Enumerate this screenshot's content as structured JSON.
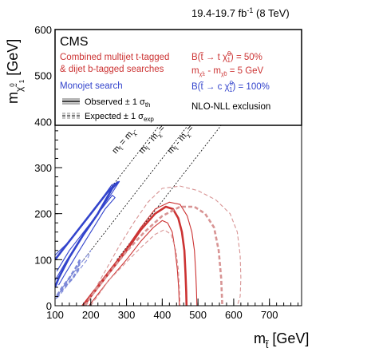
{
  "chart_data": {
    "type": "line",
    "lumi_label": "19.4-19.7 fb",
    "lumi_sup": "-1",
    "lumi_energy": "(8 TeV)",
    "xlabel": "m",
    "xlabel_sub": "t̃",
    "xlabel_unit": "[GeV]",
    "ylabel": "m",
    "ylabel_sub": "χ̃",
    "ylabel_sub2": "1",
    "ylabel_sup": "0",
    "ylabel_unit": "[GeV]",
    "xlim": [
      100,
      790
    ],
    "ylim": [
      0,
      600
    ],
    "xticks": [
      100,
      200,
      300,
      400,
      500,
      600,
      700
    ],
    "yticks": [
      0,
      100,
      200,
      300,
      400,
      500,
      600
    ],
    "grid": false,
    "legend_placement": "top",
    "colors": {
      "red": "#cc3333",
      "red_light": "#d89494",
      "blue": "#3344cc",
      "blue_light": "#7d89d8",
      "black": "#000000"
    },
    "legend": {
      "cms": "CMS",
      "red_line1": "Combined multijet t-tagged",
      "red_line2": "& dijet b-tagged searches",
      "blue_line": "Monojet search",
      "observed": "Observed ± 1 σ",
      "observed_sub": "th",
      "expected": "Expected ± 1 σ",
      "expected_sub": "exp",
      "br1": "B(t̃ → t χ̃",
      "br1_sup": "0",
      "br1_sub": "1",
      "br1_tail": ") = 50%",
      "mass_diff": "m",
      "mass_diff_sub1": "χ̃±",
      "mass_diff_mid": " - m",
      "mass_diff_sub2": "χ̃0",
      "mass_diff_tail": " = 5 GeV",
      "br2": "B(t̃ → c χ̃",
      "br2_sup": "0",
      "br2_sub": "1",
      "br2_tail": ") = 100%",
      "nlo": "NLO-NLL exclusion"
    },
    "diagonals": [
      {
        "name": "m_t̃ = m_χ̃",
        "offset": 0,
        "label": "m",
        "label_sub1": "t̃",
        "label_mid": " = m",
        "label_sub2": "χ̃",
        "label_tail": ""
      },
      {
        "name": "m_t̃ - m_χ̃ = m_W",
        "offset": 80,
        "label": "m",
        "label_sub1": "t̃",
        "label_mid": " - m",
        "label_sub2": "χ̃",
        "label_tail": " = m",
        "label_sub3": "W"
      },
      {
        "name": "m_t̃ - m_χ̃ = m_t",
        "offset": 173,
        "label": "m",
        "label_sub1": "t̃",
        "label_mid": " - m",
        "label_sub2": "χ̃",
        "label_tail": " = m",
        "label_sub3": "t"
      }
    ],
    "series": [
      {
        "group": "red",
        "role": "observed",
        "style": "solid-thick",
        "x": [
          180,
          200,
          250,
          300,
          340,
          380,
          410,
          430,
          445,
          455,
          462,
          465,
          467,
          468
        ],
        "y": [
          0,
          20,
          70,
          120,
          165,
          200,
          215,
          210,
          190,
          160,
          120,
          70,
          30,
          0
        ]
      },
      {
        "group": "red",
        "role": "observed_minus",
        "style": "solid-thin",
        "x": [
          195,
          250,
          300,
          340,
          375,
          400,
          415,
          428,
          436,
          442,
          446,
          448
        ],
        "y": [
          0,
          55,
          100,
          140,
          170,
          185,
          180,
          160,
          120,
          80,
          40,
          0
        ]
      },
      {
        "group": "red",
        "role": "observed_plus",
        "style": "solid-thin",
        "x": [
          175,
          200,
          250,
          300,
          340,
          380,
          420,
          450,
          470,
          483,
          490,
          494,
          496,
          497
        ],
        "y": [
          0,
          25,
          75,
          125,
          170,
          210,
          225,
          220,
          195,
          160,
          120,
          70,
          30,
          0
        ]
      },
      {
        "group": "red",
        "role": "expected",
        "style": "dashed-thick",
        "x": [
          185,
          200,
          250,
          300,
          350,
          400,
          450,
          490,
          520,
          545,
          558,
          565,
          568
        ],
        "y": [
          0,
          20,
          70,
          118,
          160,
          195,
          215,
          215,
          200,
          170,
          120,
          60,
          0
        ]
      },
      {
        "group": "red",
        "role": "expected_minus",
        "style": "dashed-thin",
        "x": [
          200,
          250,
          300,
          345,
          380,
          405,
          425,
          438,
          445,
          448,
          450
        ],
        "y": [
          0,
          55,
          95,
          130,
          155,
          165,
          155,
          120,
          80,
          40,
          0
        ]
      },
      {
        "group": "red",
        "role": "expected_plus",
        "style": "dashed-thin",
        "x": [
          180,
          200,
          240,
          280,
          320,
          360,
          400,
          450,
          500,
          550,
          590,
          610,
          618,
          620,
          618,
          610
        ],
        "y": [
          0,
          20,
          75,
          130,
          180,
          225,
          255,
          260,
          250,
          230,
          200,
          160,
          110,
          60,
          20,
          0
        ]
      },
      {
        "group": "blue",
        "role": "observed",
        "style": "solid-thick",
        "x": [
          100,
          130,
          170,
          210,
          250,
          275,
          260,
          220,
          180,
          140,
          110,
          100
        ],
        "y": [
          100,
          130,
          170,
          210,
          250,
          268,
          255,
          200,
          155,
          105,
          60,
          40
        ]
      },
      {
        "group": "blue",
        "role": "observed_minus",
        "style": "solid-thin",
        "x": [
          105,
          140,
          180,
          220,
          260,
          268,
          240,
          200,
          160,
          125,
          110
        ],
        "y": [
          75,
          120,
          160,
          200,
          240,
          235,
          210,
          160,
          110,
          65,
          45
        ]
      },
      {
        "group": "blue",
        "role": "observed_plus",
        "style": "solid-thin",
        "x": [
          100,
          140,
          180,
          220,
          258,
          280,
          262,
          215,
          170,
          130,
          100
        ],
        "y": [
          110,
          140,
          180,
          220,
          262,
          270,
          248,
          195,
          145,
          95,
          55
        ]
      },
      {
        "group": "blue",
        "role": "expected",
        "style": "dashed-thick",
        "x": [
          105,
          125,
          150,
          165,
          170,
          160,
          140,
          120,
          108,
          105
        ],
        "y": [
          20,
          40,
          60,
          80,
          100,
          85,
          60,
          40,
          25,
          20
        ]
      },
      {
        "group": "blue",
        "role": "expected_band",
        "style": "dashed-thin",
        "x": [
          102,
          130,
          160,
          185,
          200,
          190,
          160,
          130,
          110,
          102
        ],
        "y": [
          15,
          50,
          80,
          105,
          120,
          100,
          70,
          40,
          20,
          15
        ]
      }
    ]
  }
}
